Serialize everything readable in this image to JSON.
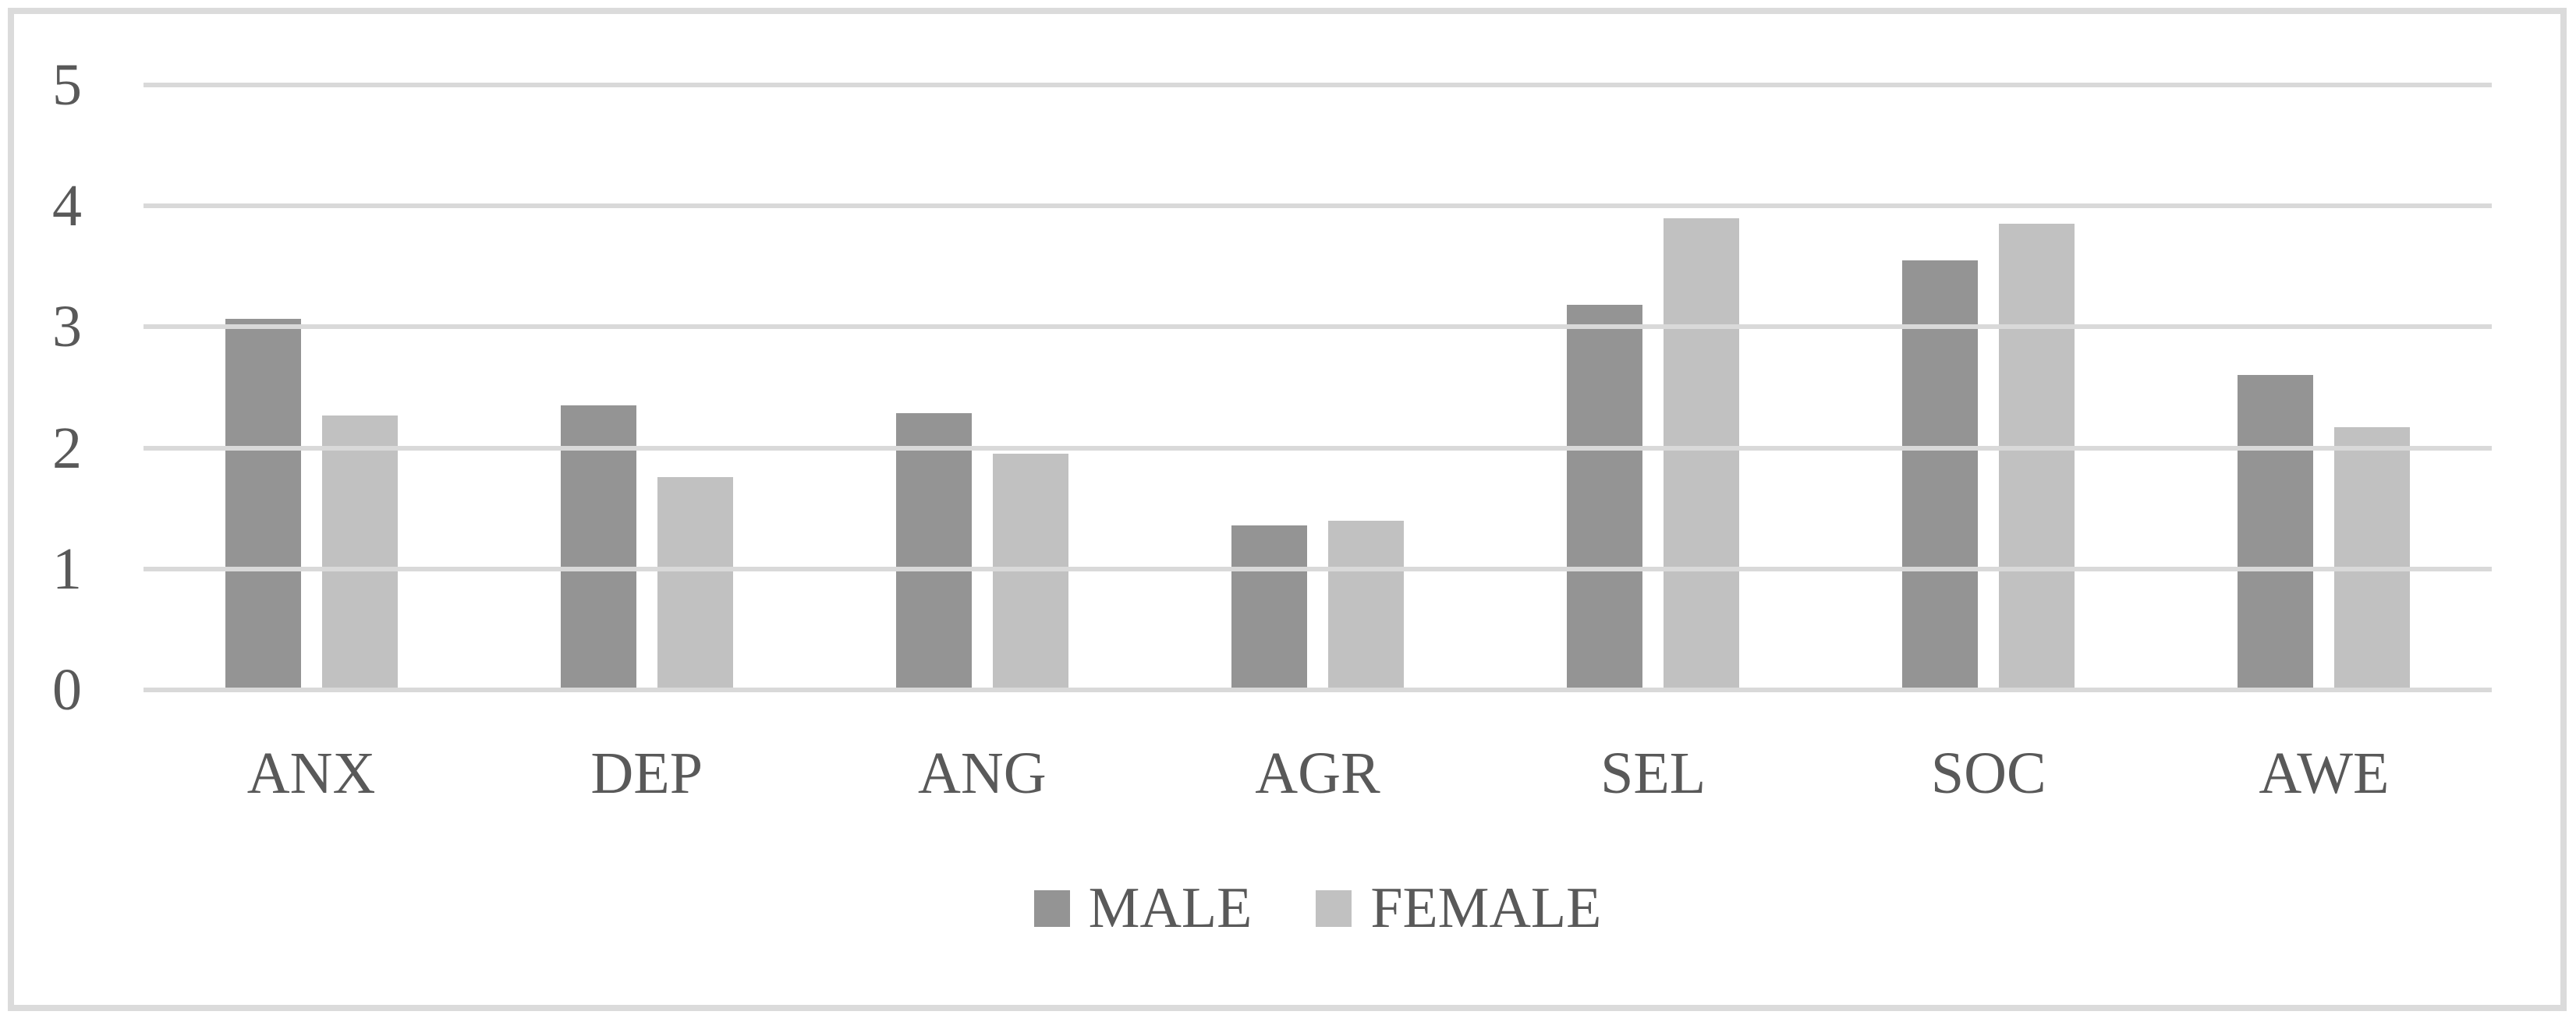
{
  "chart_data": {
    "type": "bar",
    "title": "",
    "categories": [
      "ANX",
      "DEP",
      "ANG",
      "AGR",
      "SEL",
      "SOC",
      "AWE"
    ],
    "series": [
      {
        "name": "MALE",
        "color": "#949494",
        "values": [
          3.07,
          2.35,
          2.29,
          1.36,
          3.18,
          3.55,
          2.6
        ]
      },
      {
        "name": "FEMALE",
        "color": "#c1c1c1",
        "values": [
          2.27,
          1.76,
          1.95,
          1.4,
          3.9,
          3.85,
          2.17
        ]
      }
    ],
    "xlabel": "",
    "ylabel": "",
    "ylim": [
      0,
      5
    ],
    "yticks": [
      "0",
      "1",
      "2",
      "3",
      "4",
      "5"
    ],
    "grid": true,
    "legend_position": "bottom-center",
    "colors": {
      "gridline": "#d9d9d9",
      "axis_text": "#595959",
      "frame_border": "#dbdbdb",
      "background": "#ffffff"
    }
  }
}
